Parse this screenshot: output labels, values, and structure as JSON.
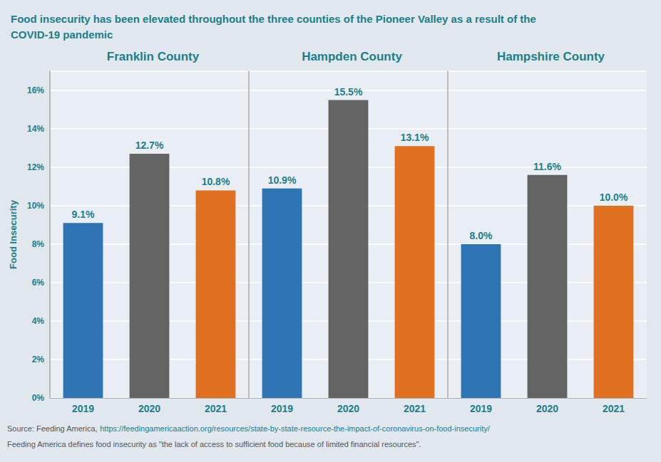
{
  "chart_data": [
    {
      "type": "bar",
      "title": "Franklin County",
      "annotations": [
        "Food insecurity has been elevated throughout the three counties of the Pioneer Valley as a result of the",
        "COVID-19 pandemic",
        "Source: Feeding America, ",
        "https://feedingamericaaction.org/resources/state-by-state-resource-the-impact-of-coronavirus-on-food-insecurity/",
        "Feeding America defines food insecurity as \"the lack of access to sufficient food because of limited financial resources\"."
      ],
      "ylabel": "Food Insecurity",
      "categories": [
        "2019",
        "2020",
        "2021"
      ],
      "values": [
        9.1,
        12.7,
        10.8
      ],
      "value_labels": [
        "9.1%",
        "12.7%",
        "10.8%"
      ],
      "data_labels": true,
      "colors": [
        "#2E75B6",
        "#636363",
        "#E07020"
      ],
      "ylim": [
        0,
        17
      ],
      "yticks": [
        {
          "value": 0,
          "label": "0%"
        },
        {
          "value": 2,
          "label": "2%"
        },
        {
          "value": 4,
          "label": "4%"
        },
        {
          "value": 6,
          "label": "6%"
        },
        {
          "value": 8,
          "label": "8%"
        },
        {
          "value": 10,
          "label": "10%"
        },
        {
          "value": 12,
          "label": "12%"
        },
        {
          "value": 14,
          "label": "14%"
        },
        {
          "value": 16,
          "label": "16%"
        }
      ],
      "grid": true
    },
    {
      "type": "bar",
      "title": "Hampden County",
      "categories": [
        "2019",
        "2020",
        "2021"
      ],
      "values": [
        10.9,
        15.5,
        13.1
      ],
      "value_labels": [
        "10.9%",
        "15.5%",
        "13.1%"
      ],
      "data_labels": true,
      "colors": [
        "#2E75B6",
        "#636363",
        "#E07020"
      ],
      "ylim": [
        0,
        17
      ],
      "yticks": [
        0,
        2,
        4,
        6,
        8,
        10,
        12,
        14,
        16
      ],
      "tick_labels": "x",
      "grid": true
    },
    {
      "type": "bar",
      "title": "Hampshire County",
      "categories": [
        "2019",
        "2020",
        "2021"
      ],
      "values": [
        8.0,
        11.6,
        10.0
      ],
      "value_labels": [
        "8.0%",
        "11.6%",
        "10.0%"
      ],
      "data_labels": true,
      "colors": [
        "#2E75B6",
        "#636363",
        "#E07020"
      ],
      "ylim": [
        0,
        17
      ],
      "yticks": [
        0,
        2,
        4,
        6,
        8,
        10,
        12,
        14,
        16
      ],
      "tick_labels": "x",
      "grid": true
    }
  ]
}
